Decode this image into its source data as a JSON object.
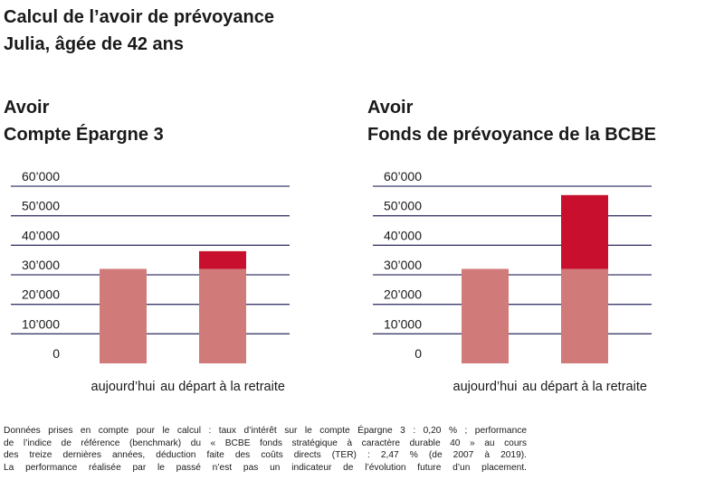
{
  "title": {
    "line1": "Calcul de l’avoir de prévoyance",
    "line2": "Julia, âgée de 42 ans"
  },
  "colors": {
    "base": "#d07a7a",
    "gain": "#c8102e",
    "grid": "#3b3b6e",
    "text": "#1a1a1a"
  },
  "chart_data": [
    {
      "type": "bar",
      "stacked": true,
      "title": [
        "Avoir",
        "Compte Épargne 3"
      ],
      "categories": [
        "aujourd’hui",
        "au départ à la retraite"
      ],
      "series": [
        {
          "values": [
            32000,
            32000
          ],
          "color": "#d07a7a"
        },
        {
          "values": [
            0,
            6000
          ],
          "color": "#c8102e"
        }
      ],
      "yticks": [
        "60’000",
        "50’000",
        "40’000",
        "30’000",
        "20’000",
        "10’000",
        "0"
      ],
      "ylim": [
        0,
        60000
      ],
      "grid": true
    },
    {
      "type": "bar",
      "stacked": true,
      "title": [
        "Avoir",
        "Fonds de prévoyance de la BCBE"
      ],
      "categories": [
        "aujourd’hui",
        "au départ à la retraite"
      ],
      "series": [
        {
          "values": [
            32000,
            32000
          ],
          "color": "#d07a7a"
        },
        {
          "values": [
            0,
            25000
          ],
          "color": "#c8102e"
        }
      ],
      "yticks": [
        "60’000",
        "50’000",
        "40’000",
        "30’000",
        "20’000",
        "10’000",
        "0"
      ],
      "ylim": [
        0,
        60000
      ],
      "grid": true
    }
  ],
  "footnote": [
    "Données prises en compte pour le calcul : taux d’intérêt sur le compte Épargne 3 : 0,20 % ; performance",
    "de l’indice de référence (benchmark) du « BCBE fonds stratégique à caractère durable 40 » au cours",
    "des treize dernières années, déduction faite des coûts directs (TER) : 2,47 % (de 2007 à 2019).",
    "La performance réalisée par le passé n’est pas un indicateur de l’évolution future d’un placement."
  ]
}
